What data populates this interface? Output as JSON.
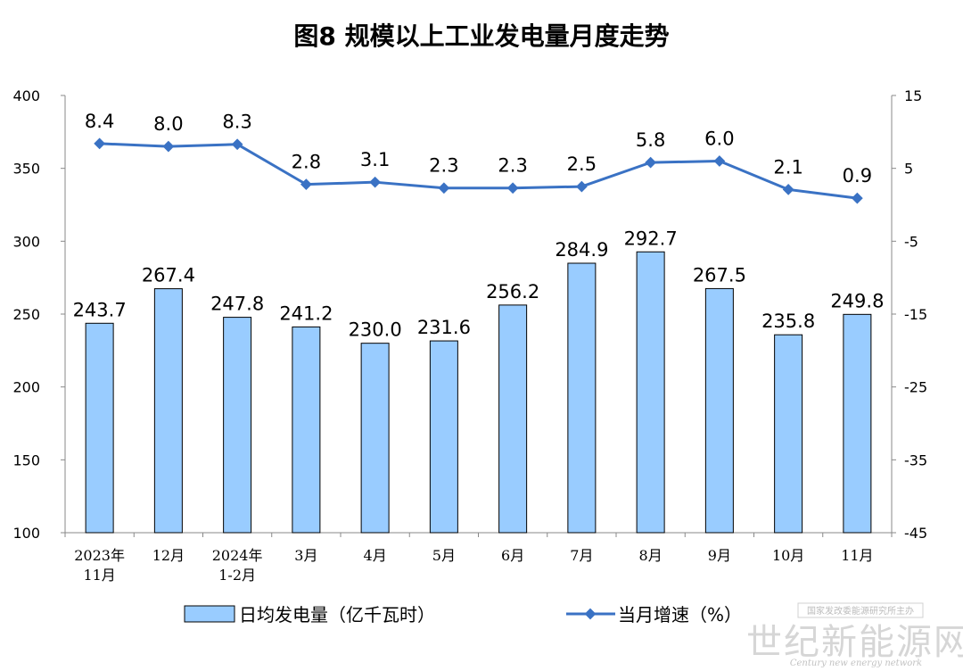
{
  "chart_data": {
    "type": "bar+line",
    "title": "图8  规模以上工业发电量月度走势",
    "categories": [
      [
        "2023年",
        "11月"
      ],
      [
        "12月"
      ],
      [
        "2024年",
        "1-2月"
      ],
      [
        "3月"
      ],
      [
        "4月"
      ],
      [
        "5月"
      ],
      [
        "6月"
      ],
      [
        "7月"
      ],
      [
        "8月"
      ],
      [
        "9月"
      ],
      [
        "10月"
      ],
      [
        "11月"
      ]
    ],
    "series": [
      {
        "name": "日均发电量（亿千瓦时）",
        "type": "bar",
        "axis": "left",
        "color": "#99ccff",
        "values": [
          243.7,
          267.4,
          247.8,
          241.2,
          230.0,
          231.6,
          256.2,
          284.9,
          292.7,
          267.5,
          235.8,
          249.8
        ],
        "labels": [
          "243.7",
          "267.4",
          "247.8",
          "241.2",
          "230.0",
          "231.6",
          "256.2",
          "284.9",
          "292.7",
          "267.5",
          "235.8",
          "249.8"
        ]
      },
      {
        "name": "当月增速（%）",
        "type": "line",
        "axis": "right",
        "color": "#3a72c4",
        "values": [
          8.4,
          8.0,
          8.3,
          2.8,
          3.1,
          2.3,
          2.3,
          2.5,
          5.8,
          6.0,
          2.1,
          0.9
        ],
        "labels": [
          "8.4",
          "8.0",
          "8.3",
          "2.8",
          "3.1",
          "2.3",
          "2.3",
          "2.5",
          "5.8",
          "6.0",
          "2.1",
          "0.9"
        ]
      }
    ],
    "y_left": {
      "range": [
        100,
        400
      ],
      "ticks": [
        "100",
        "150",
        "200",
        "250",
        "300",
        "350",
        "400"
      ]
    },
    "y_right": {
      "range": [
        -45,
        15
      ],
      "ticks": [
        "-45",
        "-35",
        "-25",
        "-15",
        "-5",
        "5",
        "15"
      ]
    },
    "grid": false,
    "legend_position": "bottom"
  },
  "watermark": {
    "title": "国家发改委能源研究所主办",
    "main": "世纪新能源网",
    "sub": "Century new energy network"
  }
}
